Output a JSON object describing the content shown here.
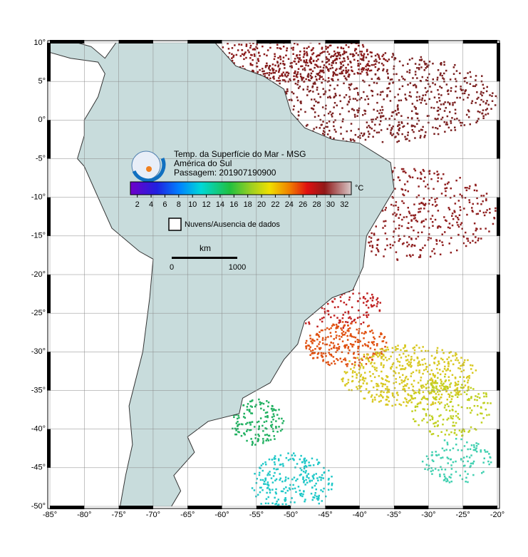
{
  "header": {
    "title": "Temp. da Superfície do Mar - MSG",
    "region": "América do Sul",
    "pass": "Passagem: 201907190900"
  },
  "axes": {
    "lon_lim": [
      -85,
      -20
    ],
    "lat_lim": [
      -50,
      10
    ],
    "lon_ticks": [
      {
        "value": -85,
        "label": "-85°"
      },
      {
        "value": -80,
        "label": "-80°"
      },
      {
        "value": -75,
        "label": "-75°"
      },
      {
        "value": -70,
        "label": "-70°"
      },
      {
        "value": -65,
        "label": "-65°"
      },
      {
        "value": -60,
        "label": "-60°"
      },
      {
        "value": -55,
        "label": "-55°"
      },
      {
        "value": -50,
        "label": "-50°"
      },
      {
        "value": -45,
        "label": "-45°"
      },
      {
        "value": -40,
        "label": "-40°"
      },
      {
        "value": -35,
        "label": "-35°"
      },
      {
        "value": -30,
        "label": "-30°"
      },
      {
        "value": -25,
        "label": "-25°"
      },
      {
        "value": -20,
        "label": "-20°"
      }
    ],
    "lat_ticks": [
      {
        "value": 10,
        "label": "10°"
      },
      {
        "value": 5,
        "label": "5°"
      },
      {
        "value": 0,
        "label": "0°"
      },
      {
        "value": -5,
        "label": "-5°"
      },
      {
        "value": -10,
        "label": "-10°"
      },
      {
        "value": -15,
        "label": "-15°"
      },
      {
        "value": -20,
        "label": "-20°"
      },
      {
        "value": -25,
        "label": "-25°"
      },
      {
        "value": -30,
        "label": "-30°"
      },
      {
        "value": -35,
        "label": "-35°"
      },
      {
        "value": -40,
        "label": "-40°"
      },
      {
        "value": -45,
        "label": "-45°"
      },
      {
        "value": -50,
        "label": "-50°"
      }
    ]
  },
  "colorbar": {
    "lim": [
      1,
      33
    ],
    "ticks": [
      2,
      4,
      6,
      8,
      10,
      12,
      14,
      16,
      18,
      20,
      22,
      24,
      26,
      28,
      30,
      32
    ],
    "unit": "°C"
  },
  "legend": {
    "no_data": "Nuvens/Ausencia de dados"
  },
  "scale_bar": {
    "unit": "km",
    "start": "0",
    "end": "1000"
  }
}
